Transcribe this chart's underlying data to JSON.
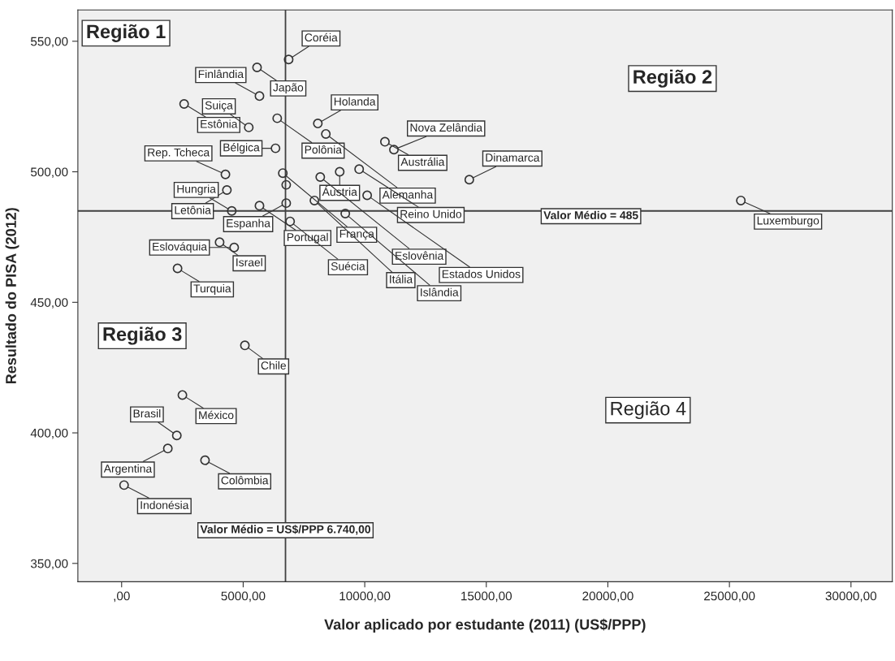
{
  "chart_data": {
    "type": "scatter",
    "xlabel": "Valor aplicado por estudante (2011) (US$/PPP)",
    "ylabel": "Resultado do PISA (2012)",
    "x": [
      5570,
      6870,
      2570,
      5670,
      6400,
      5230,
      8070,
      8400,
      10830,
      11200,
      6330,
      6630,
      6770,
      6770,
      8970,
      9770,
      8170,
      4270,
      4330,
      4530,
      5670,
      6930,
      4030,
      4630,
      2300,
      10100,
      9200,
      7930,
      14300,
      25470,
      5070,
      2500,
      2270,
      1900,
      3430,
      100
    ],
    "series": [
      {
        "color": "#333333",
        "values": [
          540,
          543,
          526,
          529,
          520.5,
          517,
          518.5,
          514.5,
          511.5,
          508.5,
          509,
          499.5,
          495,
          488,
          500,
          501,
          498,
          499,
          493,
          485,
          487,
          481,
          473,
          471,
          463,
          491,
          484,
          489,
          497,
          489,
          433.5,
          414.5,
          399,
          394,
          389.5,
          380
        ]
      }
    ],
    "annotations": [
      {
        "text": "Japão",
        "x": 5570,
        "y": 540
      },
      {
        "text": "Coréia",
        "x": 6870,
        "y": 543
      },
      {
        "text": "Estônia",
        "x": 2570,
        "y": 526
      },
      {
        "text": "Finlândia",
        "x": 5670,
        "y": 529
      },
      {
        "text": "Polônia",
        "x": 6400,
        "y": 520.5
      },
      {
        "text": "Suiça",
        "x": 5230,
        "y": 517
      },
      {
        "text": "Holanda",
        "x": 8070,
        "y": 518.5
      },
      {
        "text": "Alemanha",
        "x": 8400,
        "y": 514.5
      },
      {
        "text": "Austrália",
        "x": 10830,
        "y": 511.5
      },
      {
        "text": "Nova Zelândia",
        "x": 11200,
        "y": 508.5
      },
      {
        "text": "Bélgica",
        "x": 6330,
        "y": 509
      },
      {
        "text": "França",
        "x": 6630,
        "y": 499.5
      },
      {
        "text": "Espanha",
        "x": 6770,
        "y": 488
      },
      {
        "text": "Áustria",
        "x": 8970,
        "y": 500
      },
      {
        "text": "Reino Unido",
        "x": 9770,
        "y": 501
      },
      {
        "text": "Eslovênia",
        "x": 8170,
        "y": 498
      },
      {
        "text": "Rep. Tcheca",
        "x": 4270,
        "y": 499
      },
      {
        "text": "Letônia",
        "x": 4330,
        "y": 493
      },
      {
        "text": "Hungria",
        "x": 4530,
        "y": 485
      },
      {
        "text": "Portugal",
        "x": 5670,
        "y": 487
      },
      {
        "text": "Suécia",
        "x": 6930,
        "y": 481
      },
      {
        "text": "Israel",
        "x": 4030,
        "y": 473
      },
      {
        "text": "Eslováquia",
        "x": 4630,
        "y": 471
      },
      {
        "text": "Turquia",
        "x": 2300,
        "y": 463
      },
      {
        "text": "Estados Unidos",
        "x": 10100,
        "y": 491
      },
      {
        "text": "Islândia",
        "x": 9200,
        "y": 484
      },
      {
        "text": "Itália",
        "x": 7930,
        "y": 489
      },
      {
        "text": "Dinamarca",
        "x": 14300,
        "y": 497
      },
      {
        "text": "Luxemburgo",
        "x": 25470,
        "y": 489
      },
      {
        "text": "Chile",
        "x": 5070,
        "y": 433.5
      },
      {
        "text": "México",
        "x": 2500,
        "y": 414.5
      },
      {
        "text": "Brasil",
        "x": 2270,
        "y": 399
      },
      {
        "text": "Argentina",
        "x": 1900,
        "y": 394
      },
      {
        "text": "Colômbia",
        "x": 3430,
        "y": 389.5
      },
      {
        "text": "Indonésia",
        "x": 100,
        "y": 380
      },
      "Região 1",
      "Região 2",
      "Região 3",
      "Região 4"
    ],
    "ref_lines": [
      {
        "axis": "x",
        "value": 6740,
        "label": "Valor Médio = US$/PPP 6.740,00",
        "color": "#404040"
      },
      {
        "axis": "y",
        "value": 485,
        "label": "Valor Médio = 485",
        "color": "#404040"
      }
    ],
    "xlim": [
      -1800,
      31700
    ],
    "xticks": [
      {
        "value": 0,
        "label": ",00"
      },
      {
        "value": 5000,
        "label": "5000,00"
      },
      {
        "value": 10000,
        "label": "10000,00"
      },
      {
        "value": 15000,
        "label": "15000,00"
      },
      {
        "value": 20000,
        "label": "20000,00"
      },
      {
        "value": 25000,
        "label": "25000,00"
      },
      {
        "value": 30000,
        "label": "30000,00"
      }
    ],
    "ylim": [
      343,
      562
    ],
    "yticks": [
      {
        "value": 350,
        "label": "350,00"
      },
      {
        "value": 400,
        "label": "400,00"
      },
      {
        "value": 450,
        "label": "450,00"
      },
      {
        "value": 500,
        "label": "500,00"
      },
      {
        "value": 550,
        "label": "550,00"
      }
    ],
    "marker": "circle",
    "grid": false
  }
}
